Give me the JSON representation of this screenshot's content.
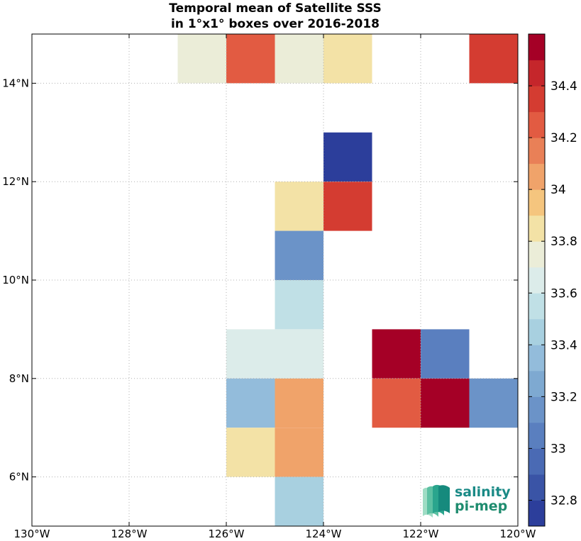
{
  "chart_data": {
    "type": "heatmap",
    "title": [
      "Temporal mean of Satellite SSS",
      "in 1°x1° boxes over 2016-2018"
    ],
    "xlim": [
      -130,
      -120
    ],
    "ylim": [
      5,
      15
    ],
    "x_ticks": [
      {
        "value": -130,
        "label": "130°W"
      },
      {
        "value": -128,
        "label": "128°W"
      },
      {
        "value": -126,
        "label": "126°W"
      },
      {
        "value": -124,
        "label": "124°W"
      },
      {
        "value": -122,
        "label": "122°W"
      },
      {
        "value": -120,
        "label": "120°W"
      }
    ],
    "y_ticks": [
      {
        "value": 6,
        "label": "6°N"
      },
      {
        "value": 8,
        "label": "8°N"
      },
      {
        "value": 10,
        "label": "10°N"
      },
      {
        "value": 12,
        "label": "12°N"
      },
      {
        "value": 14,
        "label": "14°N"
      }
    ],
    "grid": true,
    "colorbar": {
      "min": 32.7,
      "max": 34.6,
      "step": 0.1,
      "ticks": [
        32.8,
        33,
        33.2,
        33.4,
        33.6,
        33.8,
        34,
        34.2,
        34.4
      ],
      "tick_labels": [
        "32.8",
        "33",
        "33.2",
        "33.4",
        "33.6",
        "33.8",
        "34",
        "34.2",
        "34.4"
      ],
      "colors": [
        "#2c3e9b",
        "#3a54a6",
        "#4a6ab4",
        "#5a7fbf",
        "#6b93c8",
        "#7ea9d1",
        "#93bcdb",
        "#a8d0e0",
        "#c0e0e6",
        "#dcecea",
        "#ebedd8",
        "#f3e2a6",
        "#f5c57e",
        "#f0a36a",
        "#e98057",
        "#e25b42",
        "#d43c31",
        "#c5262b",
        "#a50026"
      ]
    },
    "cells": [
      {
        "lon": -127,
        "lat": 14,
        "value": 33.75
      },
      {
        "lon": -126,
        "lat": 14,
        "value": 34.25
      },
      {
        "lon": -125,
        "lat": 14,
        "value": 33.75
      },
      {
        "lon": -124,
        "lat": 14,
        "value": 33.85
      },
      {
        "lon": -121,
        "lat": 14,
        "value": 34.35
      },
      {
        "lon": -124,
        "lat": 12,
        "value": 32.75
      },
      {
        "lon": -125,
        "lat": 11,
        "value": 33.85
      },
      {
        "lon": -124,
        "lat": 11,
        "value": 34.35
      },
      {
        "lon": -125,
        "lat": 10,
        "value": 33.15
      },
      {
        "lon": -125,
        "lat": 9,
        "value": 33.55
      },
      {
        "lon": -126,
        "lat": 8,
        "value": 33.65
      },
      {
        "lon": -125,
        "lat": 8,
        "value": 33.65
      },
      {
        "lon": -123,
        "lat": 8,
        "value": 34.55
      },
      {
        "lon": -122,
        "lat": 8,
        "value": 33.05
      },
      {
        "lon": -126,
        "lat": 7,
        "value": 33.35
      },
      {
        "lon": -125,
        "lat": 7,
        "value": 34.05
      },
      {
        "lon": -123,
        "lat": 7,
        "value": 34.25
      },
      {
        "lon": -122,
        "lat": 7,
        "value": 34.55
      },
      {
        "lon": -121,
        "lat": 7,
        "value": 33.15
      },
      {
        "lon": -126,
        "lat": 6,
        "value": 33.85
      },
      {
        "lon": -125,
        "lat": 6,
        "value": 34.05
      },
      {
        "lon": -125,
        "lat": 5,
        "value": 33.45
      }
    ]
  },
  "logo": {
    "line1": "salinity",
    "line2": "pi-mep"
  }
}
